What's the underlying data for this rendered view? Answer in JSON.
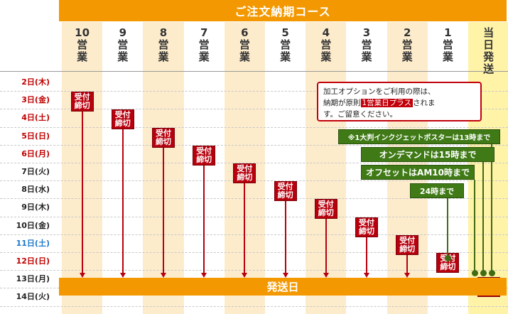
{
  "title": "ご注文納期コース",
  "columns": [
    {
      "num": "10",
      "label": "営業"
    },
    {
      "num": "9",
      "label": "営業"
    },
    {
      "num": "8",
      "label": "営業"
    },
    {
      "num": "7",
      "label": "営業"
    },
    {
      "num": "6",
      "label": "営業"
    },
    {
      "num": "5",
      "label": "営業"
    },
    {
      "num": "4",
      "label": "営業"
    },
    {
      "num": "3",
      "label": "営業"
    },
    {
      "num": "2",
      "label": "営業"
    },
    {
      "num": "1",
      "label": "営業"
    },
    {
      "num": "",
      "label": "当日発送"
    }
  ],
  "dates": [
    "2日(木)",
    "3日(金)",
    "4日(土)",
    "5日(日)",
    "6日(月)",
    "7日(火)",
    "8日(水)",
    "9日(木)",
    "10日(金)",
    "11日(土)",
    "12日(日)",
    "13日(月)",
    "14日(火)"
  ],
  "date_colors": [
    "#c00000",
    "#c00000",
    "#c00000",
    "#c00000",
    "#c00000",
    "#222222",
    "#222222",
    "#222222",
    "#222222",
    "#1e78c8",
    "#c00000",
    "#222222",
    "#222222"
  ],
  "deadline_badge": {
    "line1": "受付",
    "line2": "締切"
  },
  "note": {
    "part1": "加工オプションをご利用の際は、",
    "part2": "納期が原則",
    "highlight": "1営業日プラス",
    "part3": "されま",
    "part4": "す。ご留意ください。"
  },
  "green_notes": {
    "large_format": "※1大判インクジェットポスターは13時まで",
    "on_demand": "オンデマンドは15時まで",
    "offset": "オフセットはAM10時まで",
    "h24": "24時まで"
  },
  "ship_day_label": "発送日",
  "colors": {
    "orange": "#f39800",
    "stripe": "#fdeccc",
    "red": "#b7000d",
    "green": "#3f7a16",
    "today_col": "#fff3a8"
  }
}
